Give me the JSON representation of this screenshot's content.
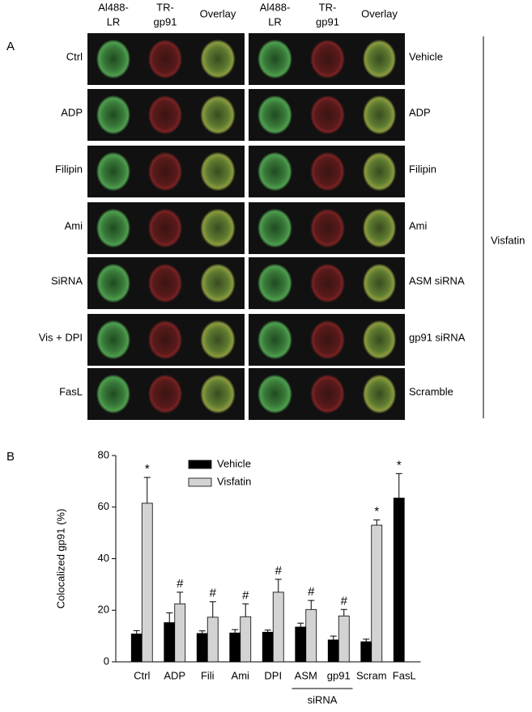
{
  "panel_a": {
    "label": "A",
    "column_headers": [
      [
        "Al488-",
        "LR"
      ],
      [
        "TR-",
        "gp91"
      ],
      [
        "Overlay"
      ],
      [
        "Al488-",
        "LR"
      ],
      [
        "TR-",
        "gp91"
      ],
      [
        "Overlay"
      ]
    ],
    "left_rows": [
      "Ctrl",
      "ADP",
      "Filipin",
      "Ami",
      "SiRNA",
      "Vis + DPI",
      "FasL"
    ],
    "right_rows": [
      "Vehicle",
      "ADP",
      "Filipin",
      "Ami",
      "ASM siRNA",
      "gp91 siRNA",
      "Scramble"
    ],
    "group_label": "Visfatin"
  },
  "panel_b_label": "B",
  "chart_data": {
    "type": "bar",
    "y_label": "Colocalized gp91 (%)",
    "categories": [
      "Ctrl",
      "ADP",
      "Fili",
      "Ami",
      "DPI",
      "ASM",
      "gp91",
      "Scram",
      "FasL"
    ],
    "series": [
      {
        "name": "Vehicle",
        "color": "#000000",
        "values": [
          10.8,
          15.2,
          11,
          11.2,
          11.5,
          13.5,
          8.5,
          7.8,
          63.5
        ],
        "errors": [
          1.3,
          3.8,
          1,
          1.3,
          0.8,
          1.5,
          1.5,
          1,
          9.5
        ],
        "markers": [
          null,
          null,
          null,
          null,
          null,
          null,
          null,
          null,
          "*"
        ]
      },
      {
        "name": "Visfatin",
        "color": "#d3d3d3",
        "values": [
          61.5,
          22.5,
          17.3,
          17.5,
          27,
          20.3,
          17.8,
          53,
          null
        ],
        "errors": [
          10,
          4.5,
          6,
          5,
          5,
          3.5,
          2.5,
          2,
          null
        ],
        "markers": [
          "*",
          "#",
          "#",
          "#",
          "#",
          "#",
          "#",
          "*",
          null
        ]
      }
    ],
    "category_groups": [
      {
        "label": "siRNA",
        "members": [
          "ASM",
          "gp91"
        ]
      }
    ],
    "ylim": [
      0,
      80
    ],
    "yticks": [
      0,
      20,
      40,
      60,
      80
    ]
  }
}
